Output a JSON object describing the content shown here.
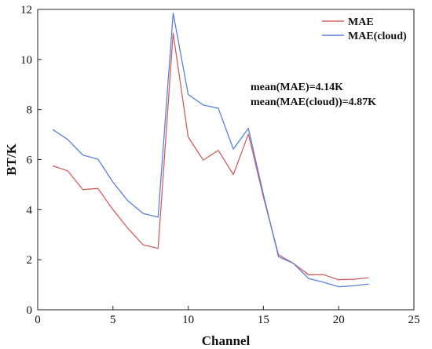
{
  "chart_data": {
    "type": "line",
    "xlabel": "Channel",
    "ylabel": "BT/K",
    "xlim": [
      0,
      25
    ],
    "ylim": [
      0,
      12
    ],
    "xticks": [
      0,
      5,
      10,
      15,
      20,
      25
    ],
    "yticks": [
      0,
      2,
      4,
      6,
      8,
      10,
      12
    ],
    "grid": false,
    "legend_position": "top-right",
    "x": [
      1,
      2,
      3,
      4,
      5,
      6,
      7,
      8,
      9,
      10,
      11,
      12,
      13,
      14,
      15,
      16,
      17,
      18,
      19,
      20,
      21,
      22
    ],
    "series": [
      {
        "name": "MAE",
        "color": "#d06060",
        "values": [
          5.75,
          5.55,
          4.8,
          4.85,
          4.0,
          3.25,
          2.6,
          2.45,
          11.05,
          6.9,
          5.98,
          6.37,
          5.4,
          7.02,
          4.5,
          2.2,
          1.85,
          1.4,
          1.4,
          1.2,
          1.22,
          1.28
        ]
      },
      {
        "name": "MAE(cloud)",
        "color": "#5b7fe0",
        "values": [
          7.2,
          6.8,
          6.18,
          6.02,
          5.1,
          4.35,
          3.85,
          3.7,
          11.85,
          8.6,
          8.18,
          8.05,
          6.42,
          7.25,
          4.6,
          2.12,
          1.85,
          1.25,
          1.1,
          0.92,
          0.96,
          1.03
        ]
      }
    ],
    "annotations": [
      "mean(MAE)=4.14K",
      "mean(MAE(cloud))=4.87K"
    ]
  }
}
